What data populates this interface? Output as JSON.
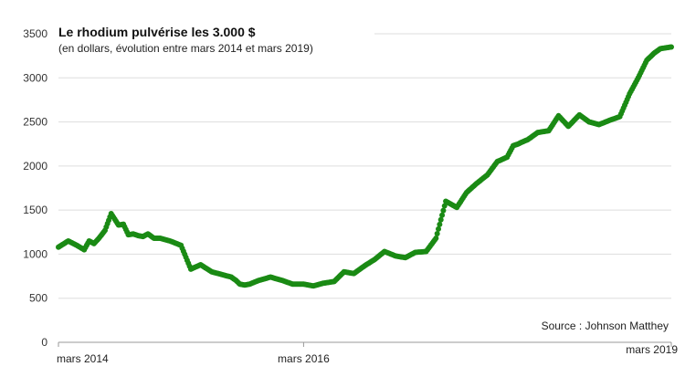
{
  "chart_data": {
    "type": "scatter",
    "title": "Le rhodium pulvérise les 3.000 $",
    "subtitle": "(en dollars, évolution entre mars 2014 et mars 2019)",
    "source": "Source : Johnson Matthey",
    "xlabel": "",
    "ylabel": "",
    "ylim": [
      0,
      3500
    ],
    "yticks": [
      0,
      500,
      1000,
      1500,
      2000,
      2500,
      3000,
      3500
    ],
    "ytick_labels": [
      "0",
      "500",
      "1000",
      "1500",
      "2000",
      "2500",
      "3000",
      "3500"
    ],
    "xlim": [
      2014.17,
      2019.17
    ],
    "xticks": [
      {
        "x": 2014.17,
        "label": "mars 2014"
      },
      {
        "x": 2016.17,
        "label": "mars 2016"
      },
      {
        "x": 2019.17,
        "label": "mars 2019"
      }
    ],
    "grid": true,
    "colors": {
      "series": "#1a8a14",
      "grid": "#dddddd",
      "axis": "#999999"
    },
    "series": [
      {
        "x": [
          2014.17,
          2014.25,
          2014.32,
          2014.38,
          2014.42,
          2014.46,
          2014.5,
          2014.55,
          2014.6,
          2014.66,
          2014.7,
          2014.74,
          2014.78,
          2014.82,
          2014.86,
          2014.9,
          2014.95,
          2015.0,
          2015.08,
          2015.17,
          2015.25,
          2015.33,
          2015.42,
          2015.5,
          2015.58,
          2015.62,
          2015.65,
          2015.69,
          2015.73,
          2015.8,
          2015.9,
          2016.0,
          2016.08,
          2016.17,
          2016.25,
          2016.33,
          2016.42,
          2016.5,
          2016.58,
          2016.67,
          2016.75,
          2016.83,
          2016.92,
          2017.0,
          2017.08,
          2017.17,
          2017.25,
          2017.33,
          2017.42,
          2017.5,
          2017.58,
          2017.67,
          2017.75,
          2017.83,
          2017.88,
          2017.92,
          2017.95,
          2018.0,
          2018.08,
          2018.17,
          2018.25,
          2018.33,
          2018.42,
          2018.5,
          2018.58,
          2018.67,
          2018.75,
          2018.83,
          2018.9,
          2018.97,
          2019.03,
          2019.08,
          2019.12,
          2019.17
        ],
        "y": [
          1080,
          1150,
          1100,
          1050,
          1150,
          1120,
          1180,
          1270,
          1460,
          1330,
          1340,
          1220,
          1230,
          1210,
          1200,
          1230,
          1180,
          1180,
          1150,
          1100,
          830,
          880,
          800,
          770,
          740,
          700,
          660,
          650,
          660,
          700,
          740,
          700,
          660,
          660,
          640,
          670,
          690,
          800,
          780,
          870,
          940,
          1030,
          980,
          960,
          1020,
          1030,
          1180,
          1600,
          1530,
          1700,
          1800,
          1900,
          2050,
          2100,
          2230,
          2250,
          2270,
          2300,
          2380,
          2400,
          2570,
          2450,
          2580,
          2500,
          2470,
          2520,
          2560,
          2820,
          3000,
          3200,
          3280,
          3330,
          3340,
          3350
        ]
      }
    ]
  }
}
